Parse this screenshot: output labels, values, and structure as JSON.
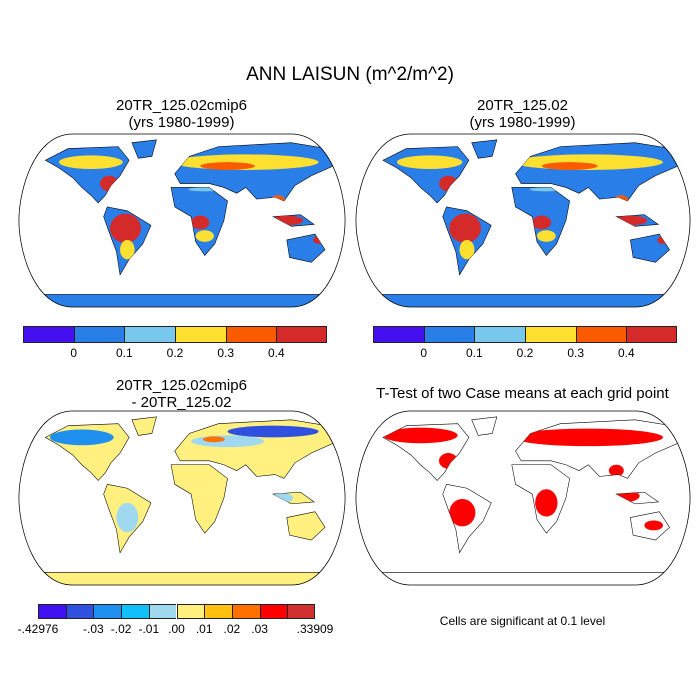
{
  "title": "ANN LAISUN (m^2/m^2)",
  "panels": [
    {
      "title_line1": "20TR_125.02cmip6",
      "title_line2": "(yrs 1980-1999)"
    },
    {
      "title_line1": "20TR_125.02",
      "title_line2": "(yrs 1980-1999)"
    },
    {
      "title_line1": "20TR_125.02cmip6",
      "title_line2": "- 20TR_125.02"
    },
    {
      "title_line1": "T-Test of two Case means at each grid point",
      "title_line2": ""
    }
  ],
  "note": "Cells are significant at 0.1 level",
  "colorbar_main": {
    "colors": [
      "#4410f0",
      "#2a7ee8",
      "#78c8ee",
      "#fde030",
      "#fa5a00",
      "#d42a2a"
    ],
    "labels": [
      "",
      "0",
      "0.1",
      "0.2",
      "0.3",
      "0.4",
      ""
    ]
  },
  "colorbar_diff": {
    "colors": [
      "#4010f0",
      "#3050e0",
      "#2090f0",
      "#10c0f8",
      "#a0d8f0",
      "#fff080",
      "#ffc010",
      "#ff7000",
      "#ff0000",
      "#d03030"
    ],
    "labels": [
      "-.42976",
      "",
      "-.03",
      "-.02",
      "-.01",
      ".00",
      ".01",
      ".02",
      ".03",
      "",
      ".33909"
    ]
  },
  "chart_data": {
    "type": "heatmap",
    "title": "ANN LAISUN (m^2/m^2)",
    "maps": [
      {
        "title": "20TR_125.02cmip6 (yrs 1980-1999)",
        "levels": [
          0,
          0.1,
          0.2,
          0.3,
          0.4
        ]
      },
      {
        "title": "20TR_125.02 (yrs 1980-1999)",
        "levels": [
          0,
          0.1,
          0.2,
          0.3,
          0.4
        ]
      },
      {
        "title": "20TR_125.02cmip6 - 20TR_125.02",
        "min": -0.42976,
        "max": 0.33909,
        "levels": [
          -0.03,
          -0.02,
          -0.01,
          0.0,
          0.01,
          0.02,
          0.03
        ]
      },
      {
        "title": "T-Test of two Case means at each grid point",
        "significance_level": 0.1,
        "significant_color": "#ff0000"
      }
    ]
  }
}
